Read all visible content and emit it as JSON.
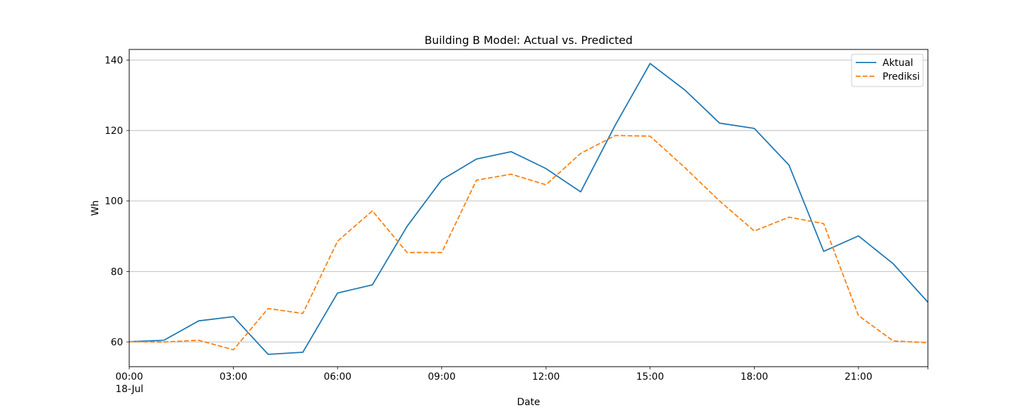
{
  "chart_data": {
    "type": "line",
    "title": "Building B Model: Actual vs. Predicted",
    "xlabel": "Date",
    "ylabel": "Wh",
    "x_hours": [
      0,
      1,
      2,
      3,
      4,
      5,
      6,
      7,
      8,
      9,
      10,
      11,
      12,
      13,
      14,
      15,
      16,
      17,
      18,
      19,
      20,
      21,
      22,
      23
    ],
    "xlim": [
      0,
      23
    ],
    "ylim": [
      53,
      143
    ],
    "x_ticks": [
      {
        "hour": 0,
        "label": "00:00",
        "sublabel": "18-Jul"
      },
      {
        "hour": 3,
        "label": "03:00"
      },
      {
        "hour": 6,
        "label": "06:00"
      },
      {
        "hour": 9,
        "label": "09:00"
      },
      {
        "hour": 12,
        "label": "12:00"
      },
      {
        "hour": 15,
        "label": "15:00"
      },
      {
        "hour": 18,
        "label": "18:00"
      },
      {
        "hour": 21,
        "label": "21:00"
      }
    ],
    "y_ticks": [
      60,
      80,
      100,
      120,
      140
    ],
    "grid": "y-major",
    "legend_position": "top-right",
    "series": [
      {
        "name": "Aktual",
        "color": "#1f77b4",
        "style": "solid",
        "values": [
          60.1,
          60.5,
          66.0,
          67.2,
          56.5,
          57.1,
          73.9,
          76.2,
          92.8,
          106.0,
          111.9,
          114.0,
          109.2,
          102.6,
          121.6,
          139.0,
          131.5,
          122.1,
          120.6,
          110.2,
          85.7,
          90.1,
          82.2,
          71.3
        ]
      },
      {
        "name": "Prediksi",
        "color": "#ff7f0e",
        "style": "dashed",
        "values": [
          60.1,
          60.0,
          60.5,
          57.8,
          69.5,
          68.1,
          88.6,
          97.2,
          85.4,
          85.4,
          105.9,
          107.6,
          104.6,
          113.5,
          118.6,
          118.4,
          109.5,
          100.0,
          91.5,
          95.4,
          93.6,
          67.5,
          60.3,
          59.8
        ]
      }
    ]
  }
}
